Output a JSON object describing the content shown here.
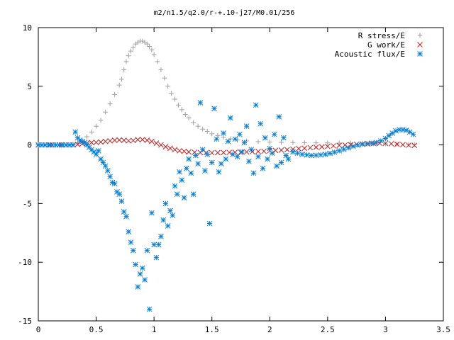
{
  "chart_data": {
    "type": "scatter",
    "title": "m2/n1.5/q2.0/r-+.10-j27/M0.01/256",
    "xlabel": "",
    "ylabel": "",
    "xlim": [
      0,
      3.5
    ],
    "ylim": [
      -15,
      10
    ],
    "x_ticks": [
      "0",
      "0.5",
      "1",
      "1.5",
      "2",
      "2.5",
      "3",
      "3.5"
    ],
    "y_ticks": [
      "10",
      "5",
      "0",
      "-5",
      "-10",
      "-15"
    ],
    "grid": false,
    "legend_position": "top-right",
    "series": [
      {
        "name": "R stress/E",
        "marker": "plus",
        "color": "#a0a0a0",
        "points": [
          [
            0.0,
            0.0
          ],
          [
            0.05,
            0.0
          ],
          [
            0.1,
            0.0
          ],
          [
            0.15,
            0.0
          ],
          [
            0.2,
            0.0
          ],
          [
            0.25,
            0.0
          ],
          [
            0.3,
            0.05
          ],
          [
            0.34,
            0.15
          ],
          [
            0.38,
            0.4
          ],
          [
            0.42,
            0.7
          ],
          [
            0.46,
            1.1
          ],
          [
            0.5,
            1.6
          ],
          [
            0.54,
            2.1
          ],
          [
            0.58,
            2.8
          ],
          [
            0.62,
            3.5
          ],
          [
            0.66,
            4.3
          ],
          [
            0.7,
            5.1
          ],
          [
            0.72,
            5.6
          ],
          [
            0.74,
            6.4
          ],
          [
            0.76,
            7.1
          ],
          [
            0.78,
            7.6
          ],
          [
            0.8,
            8.0
          ],
          [
            0.82,
            8.3
          ],
          [
            0.84,
            8.6
          ],
          [
            0.86,
            8.75
          ],
          [
            0.88,
            8.85
          ],
          [
            0.9,
            8.85
          ],
          [
            0.92,
            8.75
          ],
          [
            0.94,
            8.6
          ],
          [
            0.96,
            8.4
          ],
          [
            0.98,
            8.1
          ],
          [
            1.0,
            7.7
          ],
          [
            1.03,
            7.1
          ],
          [
            1.06,
            6.4
          ],
          [
            1.09,
            5.7
          ],
          [
            1.12,
            5.0
          ],
          [
            1.15,
            4.4
          ],
          [
            1.18,
            3.9
          ],
          [
            1.21,
            3.4
          ],
          [
            1.24,
            3.0
          ],
          [
            1.27,
            2.6
          ],
          [
            1.3,
            2.3
          ],
          [
            1.34,
            1.9
          ],
          [
            1.38,
            1.6
          ],
          [
            1.42,
            1.35
          ],
          [
            1.46,
            1.15
          ],
          [
            1.5,
            0.95
          ],
          [
            1.55,
            0.8
          ],
          [
            1.6,
            0.65
          ],
          [
            1.66,
            0.52
          ],
          [
            1.72,
            0.42
          ],
          [
            1.8,
            0.34
          ],
          [
            1.9,
            0.28
          ],
          [
            2.0,
            0.24
          ],
          [
            2.1,
            0.22
          ],
          [
            2.2,
            0.2
          ],
          [
            2.3,
            0.19
          ],
          [
            2.4,
            0.18
          ],
          [
            2.5,
            0.17
          ],
          [
            2.6,
            0.16
          ],
          [
            2.7,
            0.15
          ],
          [
            2.8,
            0.14
          ],
          [
            2.9,
            0.12
          ],
          [
            3.0,
            0.1
          ],
          [
            3.1,
            0.08
          ],
          [
            3.2,
            0.05
          ],
          [
            3.25,
            0.04
          ]
        ]
      },
      {
        "name": "G work/E",
        "marker": "cross",
        "color": "#c02020",
        "points": [
          [
            0.0,
            0.0
          ],
          [
            0.1,
            0.0
          ],
          [
            0.2,
            0.0
          ],
          [
            0.3,
            0.0
          ],
          [
            0.34,
            0.05
          ],
          [
            0.38,
            0.1
          ],
          [
            0.42,
            0.15
          ],
          [
            0.46,
            0.2
          ],
          [
            0.5,
            0.22
          ],
          [
            0.54,
            0.25
          ],
          [
            0.58,
            0.3
          ],
          [
            0.62,
            0.35
          ],
          [
            0.66,
            0.4
          ],
          [
            0.7,
            0.42
          ],
          [
            0.74,
            0.4
          ],
          [
            0.78,
            0.35
          ],
          [
            0.82,
            0.38
          ],
          [
            0.86,
            0.45
          ],
          [
            0.9,
            0.45
          ],
          [
            0.94,
            0.4
          ],
          [
            0.98,
            0.3
          ],
          [
            1.02,
            0.15
          ],
          [
            1.06,
            0.0
          ],
          [
            1.1,
            -0.15
          ],
          [
            1.14,
            -0.28
          ],
          [
            1.18,
            -0.4
          ],
          [
            1.22,
            -0.5
          ],
          [
            1.26,
            -0.55
          ],
          [
            1.3,
            -0.6
          ],
          [
            1.35,
            -0.63
          ],
          [
            1.4,
            -0.65
          ],
          [
            1.45,
            -0.66
          ],
          [
            1.5,
            -0.67
          ],
          [
            1.55,
            -0.66
          ],
          [
            1.6,
            -0.65
          ],
          [
            1.65,
            -0.64
          ],
          [
            1.7,
            -0.63
          ],
          [
            1.75,
            -0.62
          ],
          [
            1.8,
            -0.6
          ],
          [
            1.85,
            -0.58
          ],
          [
            1.9,
            -0.56
          ],
          [
            1.95,
            -0.54
          ],
          [
            2.0,
            -0.5
          ],
          [
            2.05,
            -0.47
          ],
          [
            2.1,
            -0.44
          ],
          [
            2.15,
            -0.4
          ],
          [
            2.2,
            -0.36
          ],
          [
            2.25,
            -0.32
          ],
          [
            2.3,
            -0.28
          ],
          [
            2.35,
            -0.24
          ],
          [
            2.4,
            -0.2
          ],
          [
            2.45,
            -0.16
          ],
          [
            2.5,
            -0.12
          ],
          [
            2.55,
            -0.08
          ],
          [
            2.6,
            -0.04
          ],
          [
            2.65,
            0.0
          ],
          [
            2.7,
            0.03
          ],
          [
            2.75,
            0.06
          ],
          [
            2.8,
            0.08
          ],
          [
            2.85,
            0.1
          ],
          [
            2.9,
            0.12
          ],
          [
            2.95,
            0.14
          ],
          [
            3.0,
            0.13
          ],
          [
            3.05,
            0.1
          ],
          [
            3.1,
            0.06
          ],
          [
            3.15,
            0.02
          ],
          [
            3.2,
            -0.02
          ],
          [
            3.25,
            -0.04
          ]
        ]
      },
      {
        "name": "Acoustic flux/E",
        "marker": "star",
        "color": "#0a80d8",
        "points": [
          [
            0.0,
            0.0
          ],
          [
            0.03,
            0.0
          ],
          [
            0.06,
            0.0
          ],
          [
            0.09,
            0.0
          ],
          [
            0.12,
            0.0
          ],
          [
            0.15,
            0.0
          ],
          [
            0.18,
            0.0
          ],
          [
            0.21,
            0.0
          ],
          [
            0.24,
            0.0
          ],
          [
            0.27,
            0.0
          ],
          [
            0.3,
            0.0
          ],
          [
            0.32,
            1.1
          ],
          [
            0.34,
            0.6
          ],
          [
            0.36,
            0.4
          ],
          [
            0.38,
            0.3
          ],
          [
            0.4,
            0.2
          ],
          [
            0.42,
            0.0
          ],
          [
            0.44,
            -0.2
          ],
          [
            0.46,
            -0.4
          ],
          [
            0.48,
            -0.6
          ],
          [
            0.5,
            -0.8
          ],
          [
            0.52,
            -0.5
          ],
          [
            0.54,
            -1.2
          ],
          [
            0.56,
            -1.5
          ],
          [
            0.58,
            -1.8
          ],
          [
            0.6,
            -2.2
          ],
          [
            0.62,
            -2.7
          ],
          [
            0.64,
            -3.2
          ],
          [
            0.66,
            -3.3
          ],
          [
            0.68,
            -4.0
          ],
          [
            0.7,
            -4.2
          ],
          [
            0.72,
            -4.8
          ],
          [
            0.74,
            -5.7
          ],
          [
            0.76,
            -6.1
          ],
          [
            0.78,
            -7.4
          ],
          [
            0.8,
            -8.3
          ],
          [
            0.82,
            -9.0
          ],
          [
            0.84,
            -10.2
          ],
          [
            0.86,
            -12.1
          ],
          [
            0.88,
            -11.0
          ],
          [
            0.9,
            -10.5
          ],
          [
            0.92,
            -11.5
          ],
          [
            0.94,
            -9.0
          ],
          [
            0.96,
            -14.0
          ],
          [
            0.98,
            -5.8
          ],
          [
            1.0,
            -8.5
          ],
          [
            1.02,
            -9.6
          ],
          [
            1.04,
            -8.5
          ],
          [
            1.06,
            -7.8
          ],
          [
            1.08,
            -6.4
          ],
          [
            1.1,
            -5.0
          ],
          [
            1.12,
            -6.9
          ],
          [
            1.14,
            -5.6
          ],
          [
            1.16,
            -6.0
          ],
          [
            1.18,
            -3.5
          ],
          [
            1.2,
            -4.2
          ],
          [
            1.22,
            -2.3
          ],
          [
            1.24,
            -3.0
          ],
          [
            1.26,
            -4.5
          ],
          [
            1.28,
            -2.0
          ],
          [
            1.3,
            -1.2
          ],
          [
            1.32,
            -2.4
          ],
          [
            1.34,
            -4.2
          ],
          [
            1.36,
            -0.9
          ],
          [
            1.38,
            -1.6
          ],
          [
            1.4,
            3.6
          ],
          [
            1.42,
            -0.4
          ],
          [
            1.44,
            -2.2
          ],
          [
            1.46,
            -0.8
          ],
          [
            1.48,
            -6.7
          ],
          [
            1.5,
            -1.5
          ],
          [
            1.52,
            3.1
          ],
          [
            1.54,
            0.5
          ],
          [
            1.56,
            -2.3
          ],
          [
            1.58,
            -1.6
          ],
          [
            1.6,
            1.0
          ],
          [
            1.62,
            -1.2
          ],
          [
            1.64,
            0.3
          ],
          [
            1.66,
            2.3
          ],
          [
            1.68,
            -0.8
          ],
          [
            1.7,
            0.5
          ],
          [
            1.72,
            -1.0
          ],
          [
            1.74,
            0.9
          ],
          [
            1.76,
            -0.6
          ],
          [
            1.78,
            0.2
          ],
          [
            1.8,
            1.6
          ],
          [
            1.82,
            -1.4
          ],
          [
            1.84,
            -0.4
          ],
          [
            1.86,
            -2.4
          ],
          [
            1.88,
            3.4
          ],
          [
            1.9,
            -1.0
          ],
          [
            1.92,
            1.8
          ],
          [
            1.94,
            -2.0
          ],
          [
            1.96,
            0.6
          ],
          [
            1.98,
            -1.2
          ],
          [
            2.0,
            -0.3
          ],
          [
            2.02,
            -0.7
          ],
          [
            2.04,
            0.9
          ],
          [
            2.06,
            -1.8
          ],
          [
            2.08,
            2.4
          ],
          [
            2.1,
            -1.5
          ],
          [
            2.12,
            0.6
          ],
          [
            2.14,
            -0.9
          ],
          [
            2.16,
            -1.2
          ],
          [
            2.2,
            -0.6
          ],
          [
            2.24,
            -0.7
          ],
          [
            2.28,
            -0.8
          ],
          [
            2.32,
            -0.85
          ],
          [
            2.36,
            -0.9
          ],
          [
            2.4,
            -0.88
          ],
          [
            2.44,
            -0.85
          ],
          [
            2.48,
            -0.8
          ],
          [
            2.52,
            -0.72
          ],
          [
            2.56,
            -0.62
          ],
          [
            2.6,
            -0.5
          ],
          [
            2.64,
            -0.38
          ],
          [
            2.68,
            -0.25
          ],
          [
            2.72,
            -0.12
          ],
          [
            2.76,
            -0.02
          ],
          [
            2.8,
            0.05
          ],
          [
            2.84,
            0.1
          ],
          [
            2.88,
            0.15
          ],
          [
            2.92,
            0.2
          ],
          [
            2.96,
            0.35
          ],
          [
            3.0,
            0.55
          ],
          [
            3.03,
            0.8
          ],
          [
            3.06,
            1.0
          ],
          [
            3.09,
            1.2
          ],
          [
            3.12,
            1.3
          ],
          [
            3.15,
            1.3
          ],
          [
            3.18,
            1.25
          ],
          [
            3.21,
            1.1
          ],
          [
            3.24,
            0.9
          ]
        ]
      }
    ]
  }
}
